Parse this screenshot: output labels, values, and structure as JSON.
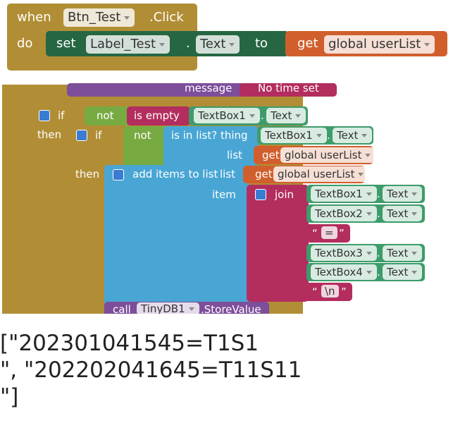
{
  "top_block": {
    "when": "when",
    "component": "Btn_Test",
    "event": ".Click",
    "do": "do",
    "set": "set",
    "set_component": "Label_Test",
    "dot": ".",
    "property": "Text",
    "to": "to",
    "get": "get",
    "variable": "global userList"
  },
  "main_block": {
    "message": "message",
    "message_value": "No time set",
    "if1": "if",
    "not1": "not",
    "is_empty": "is empty",
    "tb1a": "TextBox1",
    "dot1": ".",
    "prop1": "Text",
    "then1": "then",
    "if2": "if",
    "not2": "not",
    "is_in_list": "is in list? thing",
    "tb1b": "TextBox1",
    "dot2": ".",
    "prop2": "Text",
    "list1": "list",
    "get1": "get",
    "var1": "global userList",
    "then2": "then",
    "add_items": "add items to list",
    "list2": "list",
    "get2": "get",
    "var2": "global userList",
    "item": "item",
    "join": "join",
    "join_items": [
      {
        "component": "TextBox1",
        "dot": ".",
        "property": "Text"
      },
      {
        "component": "TextBox2",
        "dot": ".",
        "property": "Text"
      },
      {
        "open": "“",
        "text": "=",
        "close": "”"
      },
      {
        "component": "TextBox3",
        "dot": ".",
        "property": "Text"
      },
      {
        "component": "TextBox4",
        "dot": ".",
        "property": "Text"
      },
      {
        "open": "“",
        "text": "\\n",
        "close": "”"
      }
    ],
    "call": "call",
    "db": "TinyDB1",
    "method": ".StoreValue"
  },
  "output": {
    "lines": [
      "[\"202301041545=T1S1",
      "\", \"202202041645=T11S11",
      "\"]"
    ]
  }
}
